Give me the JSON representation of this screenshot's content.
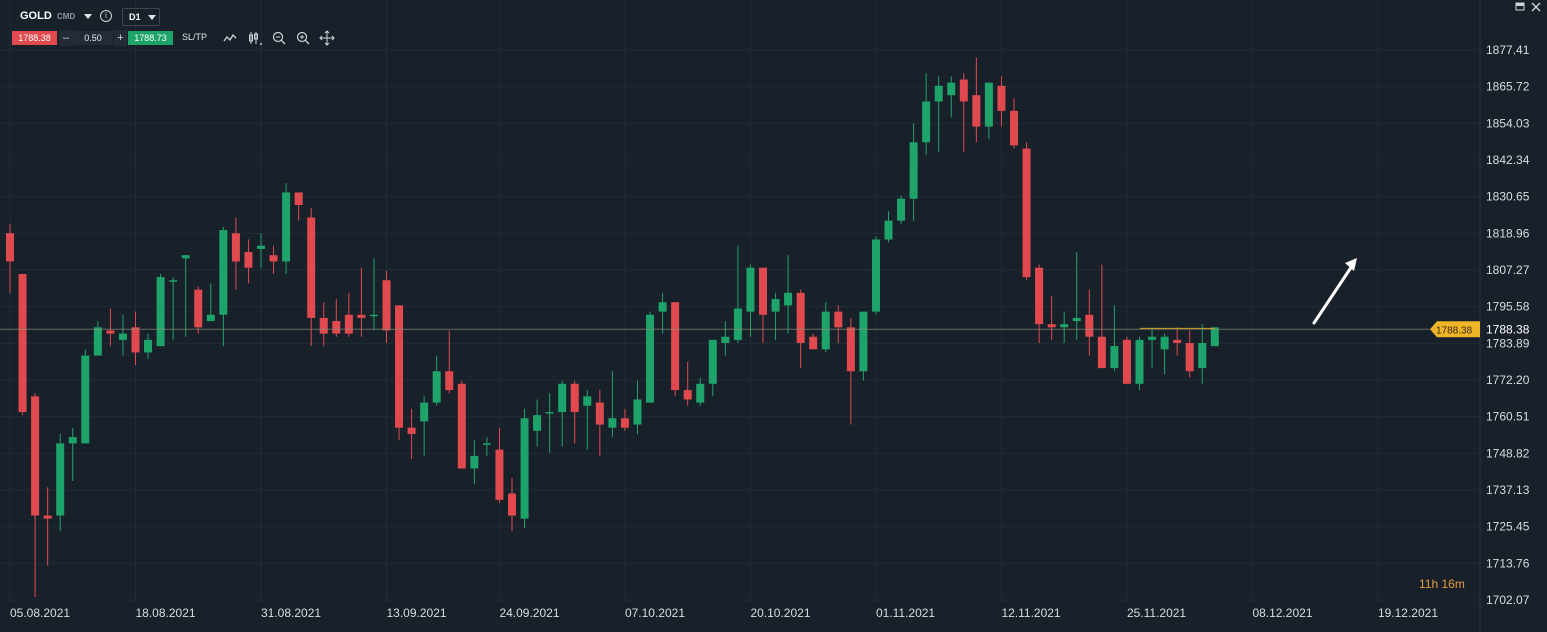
{
  "toolbar": {
    "symbol": "GOLD",
    "symbol_type": "CMD",
    "timeframe": "D1",
    "bid": "1788.38",
    "ask": "1788.73",
    "volume": "0.50",
    "minus_label": "–",
    "plus_label": "+",
    "sltp_label": "SL/TP",
    "info_label": "i"
  },
  "timer": "11h 16m",
  "price_tag": "1788.38",
  "colors": {
    "background": "#18202a",
    "bull": "#1ea46a",
    "bear": "#e04a4f",
    "grid": "#222c36",
    "axis_text": "#d7dde3",
    "price_tag": "#f0b429",
    "timer": "#e99b3a"
  },
  "chart_data": {
    "type": "candlestick",
    "title": "",
    "y_ticks": [
      "1877.41",
      "1865.72",
      "1854.03",
      "1842.34",
      "1830.65",
      "1818.96",
      "1807.27",
      "1795.58",
      "1788.38",
      "1783.89",
      "1772.20",
      "1760.51",
      "1748.82",
      "1737.13",
      "1725.45",
      "1713.76",
      "1702.07"
    ],
    "x_ticks": [
      "05.08.2021",
      "18.08.2021",
      "31.08.2021",
      "13.09.2021",
      "24.09.2021",
      "07.10.2021",
      "20.10.2021",
      "01.11.2021",
      "12.11.2021",
      "25.11.2021",
      "08.12.2021",
      "19.12.2021"
    ],
    "current_price": 1788.38,
    "candles": [
      {
        "o": 1819,
        "h": 1822,
        "l": 1800,
        "c": 1810
      },
      {
        "o": 1806,
        "h": 1806,
        "l": 1761,
        "c": 1762
      },
      {
        "o": 1767,
        "h": 1768,
        "l": 1703,
        "c": 1729
      },
      {
        "o": 1729,
        "h": 1738,
        "l": 1713,
        "c": 1728
      },
      {
        "o": 1729,
        "h": 1755,
        "l": 1724,
        "c": 1752
      },
      {
        "o": 1752,
        "h": 1757,
        "l": 1740,
        "c": 1754
      },
      {
        "o": 1752,
        "h": 1782,
        "l": 1752,
        "c": 1780
      },
      {
        "o": 1780,
        "h": 1791,
        "l": 1781,
        "c": 1789
      },
      {
        "o": 1788,
        "h": 1795,
        "l": 1783,
        "c": 1787
      },
      {
        "o": 1785,
        "h": 1793,
        "l": 1780,
        "c": 1787
      },
      {
        "o": 1789,
        "h": 1794,
        "l": 1777,
        "c": 1781
      },
      {
        "o": 1781,
        "h": 1787,
        "l": 1779,
        "c": 1785
      },
      {
        "o": 1783,
        "h": 1806,
        "l": 1783,
        "c": 1805
      },
      {
        "o": 1804,
        "h": 1805,
        "l": 1785,
        "c": 1804
      },
      {
        "o": 1811,
        "h": 1812,
        "l": 1786,
        "c": 1812
      },
      {
        "o": 1801,
        "h": 1802,
        "l": 1787,
        "c": 1789
      },
      {
        "o": 1791,
        "h": 1803,
        "l": 1791,
        "c": 1793
      },
      {
        "o": 1793,
        "h": 1821,
        "l": 1783,
        "c": 1820
      },
      {
        "o": 1819,
        "h": 1824,
        "l": 1801,
        "c": 1810
      },
      {
        "o": 1813,
        "h": 1817,
        "l": 1803,
        "c": 1808
      },
      {
        "o": 1814,
        "h": 1819,
        "l": 1808,
        "c": 1815
      },
      {
        "o": 1812,
        "h": 1815,
        "l": 1806,
        "c": 1810
      },
      {
        "o": 1810,
        "h": 1835,
        "l": 1806,
        "c": 1832
      },
      {
        "o": 1832,
        "h": 1831,
        "l": 1823,
        "c": 1828
      },
      {
        "o": 1824,
        "h": 1827,
        "l": 1783,
        "c": 1792
      },
      {
        "o": 1792,
        "h": 1797,
        "l": 1783,
        "c": 1787
      },
      {
        "o": 1791,
        "h": 1798,
        "l": 1786,
        "c": 1787
      },
      {
        "o": 1793,
        "h": 1800,
        "l": 1786,
        "c": 1787
      },
      {
        "o": 1793,
        "h": 1808,
        "l": 1786,
        "c": 1792
      },
      {
        "o": 1793,
        "h": 1811,
        "l": 1788,
        "c": 1793
      },
      {
        "o": 1804,
        "h": 1807,
        "l": 1784,
        "c": 1788
      },
      {
        "o": 1796,
        "h": 1796,
        "l": 1753,
        "c": 1757
      },
      {
        "o": 1757,
        "h": 1763,
        "l": 1747,
        "c": 1755
      },
      {
        "o": 1759,
        "h": 1767,
        "l": 1748,
        "c": 1765
      },
      {
        "o": 1765,
        "h": 1780,
        "l": 1764,
        "c": 1775
      },
      {
        "o": 1775,
        "h": 1788,
        "l": 1768,
        "c": 1769
      },
      {
        "o": 1771,
        "h": 1772,
        "l": 1744,
        "c": 1744
      },
      {
        "o": 1744,
        "h": 1753,
        "l": 1739,
        "c": 1748
      },
      {
        "o": 1752,
        "h": 1754,
        "l": 1748,
        "c": 1752
      },
      {
        "o": 1750,
        "h": 1757,
        "l": 1733,
        "c": 1734
      },
      {
        "o": 1736,
        "h": 1741,
        "l": 1724,
        "c": 1729
      },
      {
        "o": 1728,
        "h": 1763,
        "l": 1725,
        "c": 1760
      },
      {
        "o": 1756,
        "h": 1766,
        "l": 1751,
        "c": 1761
      },
      {
        "o": 1762,
        "h": 1768,
        "l": 1749,
        "c": 1762
      },
      {
        "o": 1762,
        "h": 1772,
        "l": 1751,
        "c": 1771
      },
      {
        "o": 1771,
        "h": 1772,
        "l": 1752,
        "c": 1762
      },
      {
        "o": 1764,
        "h": 1769,
        "l": 1750,
        "c": 1767
      },
      {
        "o": 1765,
        "h": 1769,
        "l": 1748,
        "c": 1758
      },
      {
        "o": 1757,
        "h": 1775,
        "l": 1754,
        "c": 1760
      },
      {
        "o": 1760,
        "h": 1763,
        "l": 1756,
        "c": 1757
      },
      {
        "o": 1758,
        "h": 1772,
        "l": 1755,
        "c": 1766
      },
      {
        "o": 1765,
        "h": 1794,
        "l": 1765,
        "c": 1793
      },
      {
        "o": 1794,
        "h": 1800,
        "l": 1787,
        "c": 1797
      },
      {
        "o": 1797,
        "h": 1797,
        "l": 1767,
        "c": 1769
      },
      {
        "o": 1769,
        "h": 1778,
        "l": 1764,
        "c": 1766
      },
      {
        "o": 1765,
        "h": 1773,
        "l": 1764,
        "c": 1771
      },
      {
        "o": 1771,
        "h": 1785,
        "l": 1767,
        "c": 1785
      },
      {
        "o": 1784,
        "h": 1791,
        "l": 1780,
        "c": 1786
      },
      {
        "o": 1785,
        "h": 1815,
        "l": 1784,
        "c": 1795
      },
      {
        "o": 1794,
        "h": 1809,
        "l": 1786,
        "c": 1808
      },
      {
        "o": 1808,
        "h": 1808,
        "l": 1784,
        "c": 1793
      },
      {
        "o": 1794,
        "h": 1800,
        "l": 1785,
        "c": 1798
      },
      {
        "o": 1796,
        "h": 1812,
        "l": 1787,
        "c": 1800
      },
      {
        "o": 1800,
        "h": 1801,
        "l": 1776,
        "c": 1784
      },
      {
        "o": 1786,
        "h": 1787,
        "l": 1782,
        "c": 1782
      },
      {
        "o": 1782,
        "h": 1797,
        "l": 1781,
        "c": 1794
      },
      {
        "o": 1794,
        "h": 1796,
        "l": 1784,
        "c": 1789
      },
      {
        "o": 1789,
        "h": 1792,
        "l": 1758,
        "c": 1775
      },
      {
        "o": 1775,
        "h": 1794,
        "l": 1772,
        "c": 1794
      },
      {
        "o": 1794,
        "h": 1818,
        "l": 1793,
        "c": 1817
      },
      {
        "o": 1817,
        "h": 1826,
        "l": 1816,
        "c": 1823
      },
      {
        "o": 1823,
        "h": 1831,
        "l": 1822,
        "c": 1830
      },
      {
        "o": 1830,
        "h": 1854,
        "l": 1823,
        "c": 1848
      },
      {
        "o": 1848,
        "h": 1870,
        "l": 1844,
        "c": 1861
      },
      {
        "o": 1861,
        "h": 1869,
        "l": 1845,
        "c": 1866
      },
      {
        "o": 1863,
        "h": 1869,
        "l": 1856,
        "c": 1867
      },
      {
        "o": 1868,
        "h": 1870,
        "l": 1845,
        "c": 1861
      },
      {
        "o": 1863,
        "h": 1875,
        "l": 1848,
        "c": 1853
      },
      {
        "o": 1853,
        "h": 1867,
        "l": 1849,
        "c": 1867
      },
      {
        "o": 1866,
        "h": 1869,
        "l": 1853,
        "c": 1858
      },
      {
        "o": 1858,
        "h": 1862,
        "l": 1846,
        "c": 1847
      },
      {
        "o": 1846,
        "h": 1848,
        "l": 1804,
        "c": 1805
      },
      {
        "o": 1808,
        "h": 1809,
        "l": 1784,
        "c": 1790
      },
      {
        "o": 1790,
        "h": 1799,
        "l": 1785,
        "c": 1789
      },
      {
        "o": 1789,
        "h": 1794,
        "l": 1784,
        "c": 1790
      },
      {
        "o": 1791,
        "h": 1813,
        "l": 1785,
        "c": 1792
      },
      {
        "o": 1793,
        "h": 1801,
        "l": 1780,
        "c": 1786
      },
      {
        "o": 1786,
        "h": 1809,
        "l": 1777,
        "c": 1776
      },
      {
        "o": 1776,
        "h": 1796,
        "l": 1775,
        "c": 1783
      },
      {
        "o": 1785,
        "h": 1786,
        "l": 1771,
        "c": 1771
      },
      {
        "o": 1771,
        "h": 1786,
        "l": 1769,
        "c": 1785
      },
      {
        "o": 1785,
        "h": 1789,
        "l": 1776,
        "c": 1786
      },
      {
        "o": 1782,
        "h": 1787,
        "l": 1774,
        "c": 1786
      },
      {
        "o": 1785,
        "h": 1789,
        "l": 1780,
        "c": 1784
      },
      {
        "o": 1784,
        "h": 1788,
        "l": 1773,
        "c": 1775
      },
      {
        "o": 1776,
        "h": 1790,
        "l": 1771,
        "c": 1784
      },
      {
        "o": 1783,
        "h": 1789,
        "l": 1783,
        "c": 1789
      }
    ]
  }
}
